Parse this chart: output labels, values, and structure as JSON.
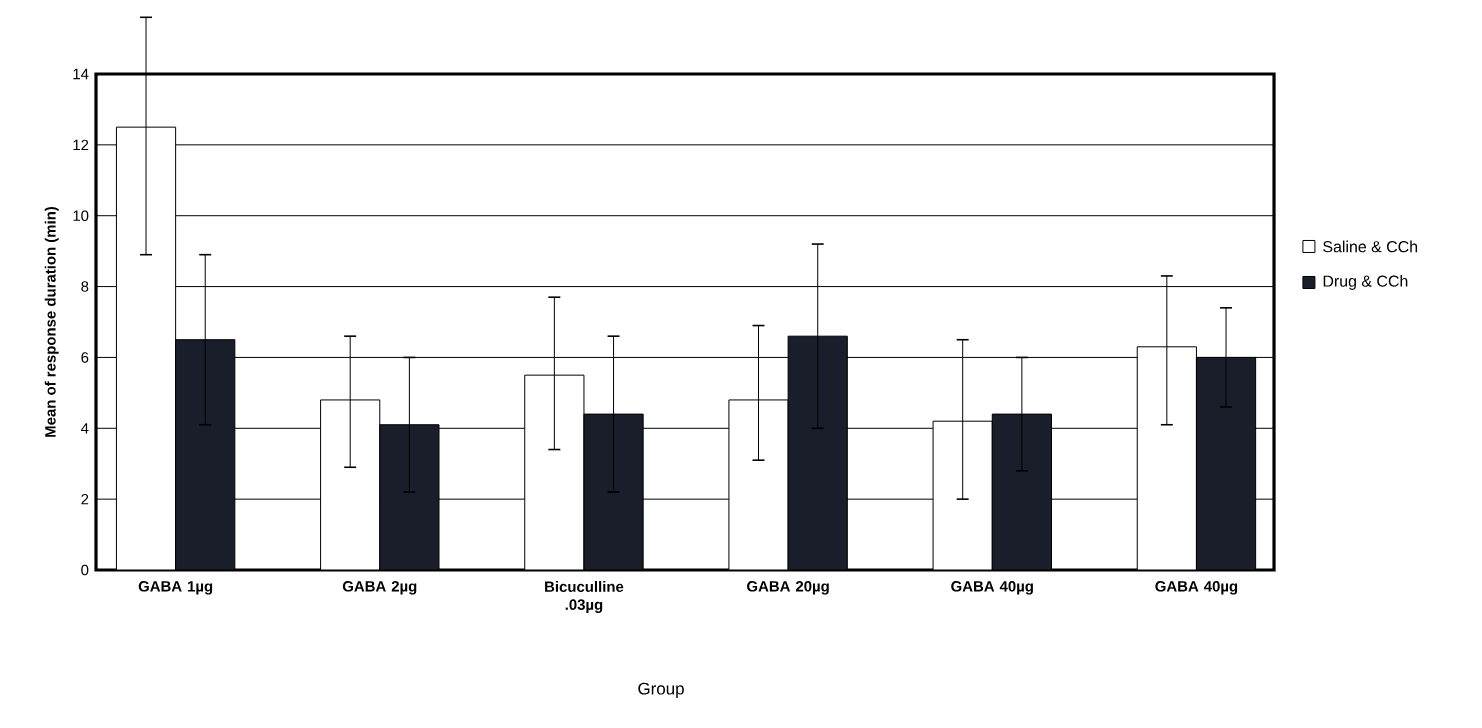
{
  "chart_data": {
    "type": "bar",
    "xlabel": "Group",
    "ylabel": "Mean of response duration (min)",
    "categories": [
      "GABA 1µg",
      "GABA 2µg",
      "Bicuculline .03µg",
      "GABA 20µg",
      "GABA 40µg",
      "GABA 40µg"
    ],
    "series": [
      {
        "name": "Saline & CCh",
        "color": "#ffffff",
        "values": [
          12.5,
          4.8,
          5.5,
          4.8,
          4.2,
          6.3
        ],
        "errors": [
          [
            8.9,
            15.6
          ],
          [
            2.9,
            6.6
          ],
          [
            3.4,
            7.7
          ],
          [
            3.1,
            6.9
          ],
          [
            2.0,
            6.5
          ],
          [
            4.1,
            8.3
          ]
        ]
      },
      {
        "name": "Drug & CCh",
        "color": "#1a1e2a",
        "values": [
          6.5,
          4.1,
          4.4,
          6.6,
          4.4,
          6.0
        ],
        "errors": [
          2.4,
          1.9,
          2.2,
          2.6,
          1.6,
          1.4
        ]
      }
    ],
    "ylim": [
      0,
      14
    ],
    "yticks": [
      0,
      2,
      4,
      6,
      8,
      10,
      12,
      14
    ],
    "grid": "y",
    "legend": "right"
  }
}
